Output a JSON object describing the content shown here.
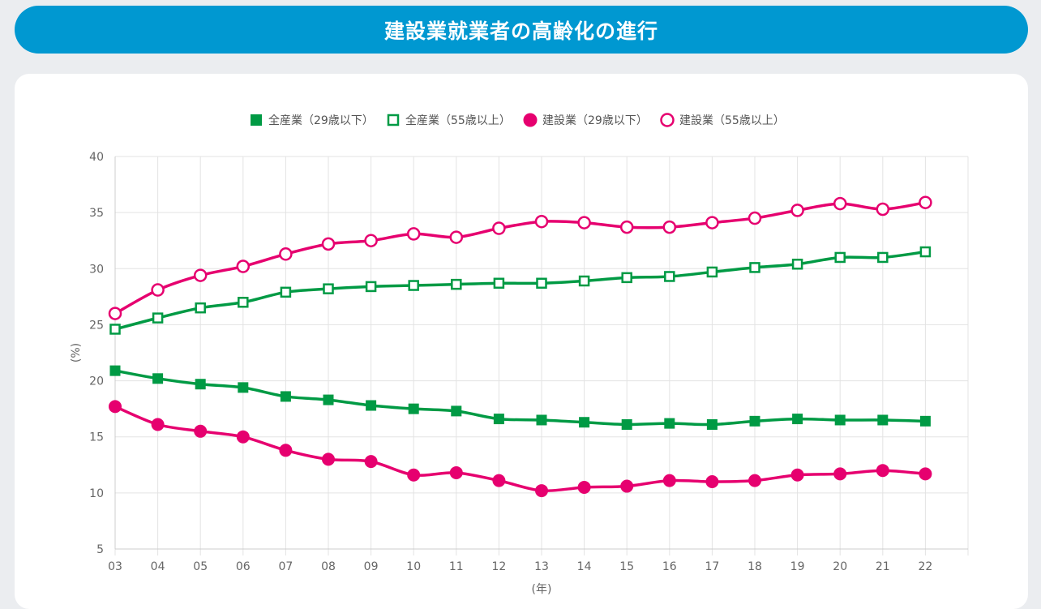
{
  "page": {
    "title": "建設業就業者の高齢化の進行"
  },
  "chart_data": {
    "type": "line",
    "title": "",
    "xlabel": "(年)",
    "ylabel": "(%)",
    "ylim": [
      5,
      40
    ],
    "yticks": [
      5,
      10,
      15,
      20,
      25,
      30,
      35,
      40
    ],
    "grid": true,
    "legend_position": "top-center",
    "categories": [
      "03",
      "04",
      "05",
      "06",
      "07",
      "08",
      "09",
      "10",
      "11",
      "12",
      "13",
      "14",
      "15",
      "16",
      "17",
      "18",
      "19",
      "20",
      "21",
      "22"
    ],
    "series": [
      {
        "name": "全産業（29歳以下）",
        "color": "#009a44",
        "marker": "square-filled",
        "values": [
          20.9,
          20.2,
          19.7,
          19.4,
          18.6,
          18.3,
          17.8,
          17.5,
          17.3,
          16.6,
          16.5,
          16.3,
          16.1,
          16.2,
          16.1,
          16.4,
          16.6,
          16.5,
          16.5,
          16.4
        ]
      },
      {
        "name": "全産業（55歳以上）",
        "color": "#009a44",
        "marker": "square-open",
        "values": [
          24.6,
          25.6,
          26.5,
          27.0,
          27.9,
          28.2,
          28.4,
          28.5,
          28.6,
          28.7,
          28.7,
          28.9,
          29.2,
          29.3,
          29.7,
          30.1,
          30.4,
          31.0,
          31.0,
          31.5
        ]
      },
      {
        "name": "建設業（29歳以下）",
        "color": "#e6006f",
        "marker": "circle-filled",
        "values": [
          17.7,
          16.1,
          15.5,
          15.0,
          13.8,
          13.0,
          12.8,
          11.6,
          11.8,
          11.1,
          10.2,
          10.5,
          10.6,
          11.1,
          11.0,
          11.1,
          11.6,
          11.7,
          12.0,
          11.7
        ]
      },
      {
        "name": "建設業（55歳以上）",
        "color": "#e6006f",
        "marker": "circle-open",
        "values": [
          26.0,
          28.1,
          29.4,
          30.2,
          31.3,
          32.2,
          32.5,
          33.1,
          32.8,
          33.6,
          34.2,
          34.1,
          33.7,
          33.7,
          34.1,
          34.5,
          35.2,
          35.8,
          35.3,
          35.9
        ]
      }
    ]
  }
}
